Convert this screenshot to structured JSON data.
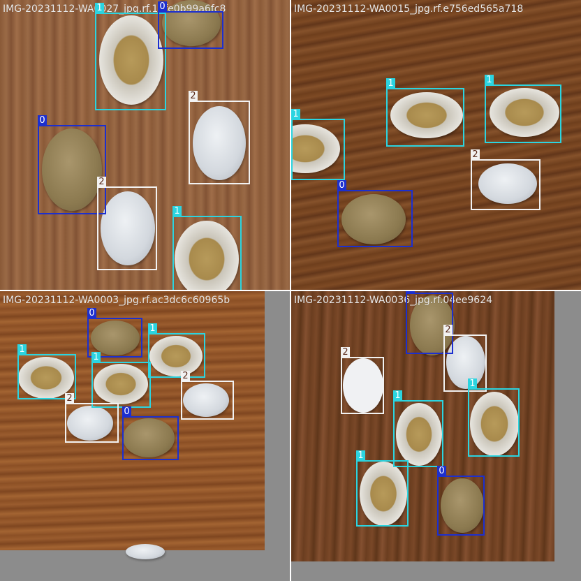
{
  "tiles": [
    {
      "filename": "IMG-20231112-WA0027_jpg.rf.14fe0b99a6fc8",
      "detections": [
        {
          "class_label": "1"
        },
        {
          "class_label": "0"
        },
        {
          "class_label": "2"
        },
        {
          "class_label": "0"
        },
        {
          "class_label": "2"
        },
        {
          "class_label": "1"
        }
      ]
    },
    {
      "filename": "IMG-20231112-WA0015_jpg.rf.e756ed565a718",
      "detections": [
        {
          "class_label": "1"
        },
        {
          "class_label": "1"
        },
        {
          "class_label": "1"
        },
        {
          "class_label": "2"
        },
        {
          "class_label": "0"
        }
      ]
    },
    {
      "filename": "IMG-20231112-WA0003_jpg.rf.ac3dc6c60965b",
      "detections": [
        {
          "class_label": "0"
        },
        {
          "class_label": "1"
        },
        {
          "class_label": "1"
        },
        {
          "class_label": "1"
        },
        {
          "class_label": "2"
        },
        {
          "class_label": "2"
        },
        {
          "class_label": "0"
        }
      ]
    },
    {
      "filename": "IMG-20231112-WA0036_jpg.rf.04ee9624",
      "detections": [
        {
          "class_label": "0"
        },
        {
          "class_label": "2"
        },
        {
          "class_label": "2"
        },
        {
          "class_label": "1"
        },
        {
          "class_label": "1"
        },
        {
          "class_label": "1"
        },
        {
          "class_label": "0"
        }
      ]
    }
  ],
  "colors": {
    "class_0": "#1c2fcf",
    "class_1": "#2bd4e0",
    "class_2": "#f2f2f2",
    "padding": "#8c8c8c"
  }
}
